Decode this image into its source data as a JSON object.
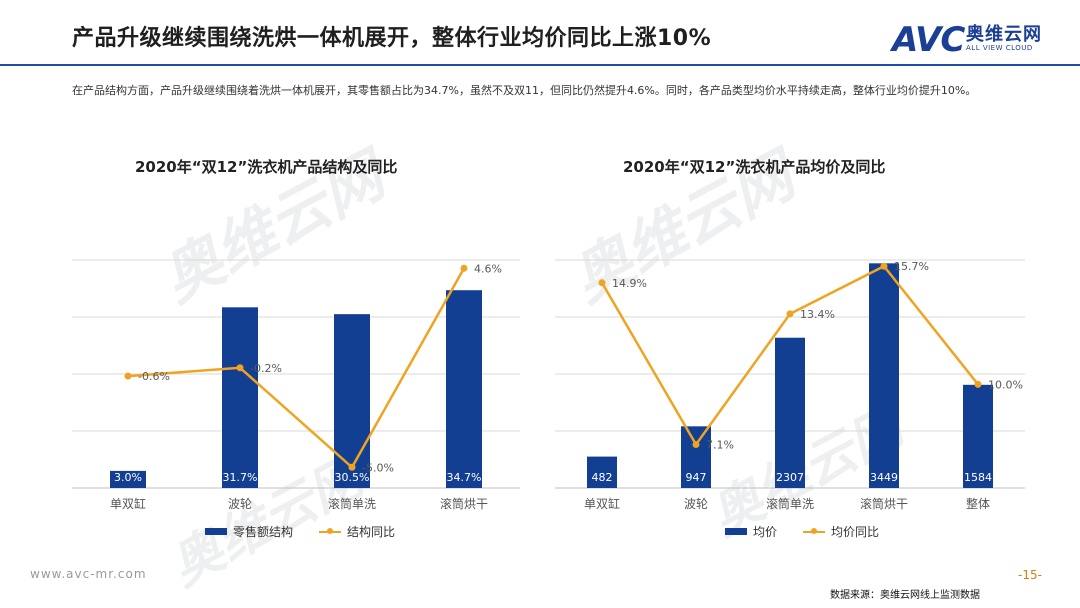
{
  "header": {
    "title": "产品升级继续围绕洗烘一体机展开，整体行业均价同比上涨10%",
    "logo_mark": "AVC",
    "logo_cn": "奥维云网",
    "logo_en": "ALL VIEW CLOUD"
  },
  "description": "在产品结构方面，产品升级继续围绕着洗烘一体机展开，其零售额占比为34.7%，虽然不及双11，但同比仍然提升4.6%。同时，各产品类型均价水平持续走高，整体行业均价提升10%。",
  "watermark": "奥维云网",
  "footer": {
    "url": "www.avc-mr.com",
    "page": "-15-",
    "source": "数据来源：奥维云网线上监测数据"
  },
  "colors": {
    "bar": "#123f91",
    "line": "#f0a321",
    "accent": "#1e4fa3"
  },
  "chart_data": [
    {
      "type": "bar",
      "title": "2020年“双12”洗衣机产品结构及同比",
      "categories": [
        "单双缸",
        "波轮",
        "滚筒单洗",
        "滚筒烘干"
      ],
      "series": [
        {
          "name": "零售额结构",
          "kind": "bar",
          "values": [
            3.0,
            31.7,
            30.5,
            34.7
          ],
          "labels": [
            "3.0%",
            "31.7%",
            "30.5%",
            "34.7%"
          ]
        },
        {
          "name": "结构同比",
          "kind": "line",
          "values": [
            -0.6,
            -0.2,
            -5.0,
            4.6
          ],
          "labels": [
            "-0.6%",
            "-0.2%",
            "-5.0%",
            "4.6%"
          ]
        }
      ],
      "bar_ylim": [
        0,
        40
      ],
      "line_ylim": [
        -6,
        5
      ],
      "grid": true,
      "legend": "bottom"
    },
    {
      "type": "bar",
      "title": "2020年“双12”洗衣机产品均价及同比",
      "categories": [
        "单双缸",
        "波轮",
        "滚筒单洗",
        "滚筒烘干",
        "整体"
      ],
      "series": [
        {
          "name": "均价",
          "kind": "bar",
          "values": [
            482,
            947,
            2307,
            3449,
            1584
          ],
          "labels": [
            "482",
            "947",
            "2307",
            "3449",
            "1584"
          ]
        },
        {
          "name": "均价同比",
          "kind": "line",
          "values": [
            14.9,
            7.1,
            13.4,
            15.7,
            10.0
          ],
          "labels": [
            "14.9%",
            "7.1%",
            "13.4%",
            "15.7%",
            "10.0%"
          ]
        }
      ],
      "bar_ylim": [
        0,
        3500
      ],
      "line_ylim": [
        5,
        16
      ],
      "grid": true,
      "legend": "bottom"
    }
  ]
}
